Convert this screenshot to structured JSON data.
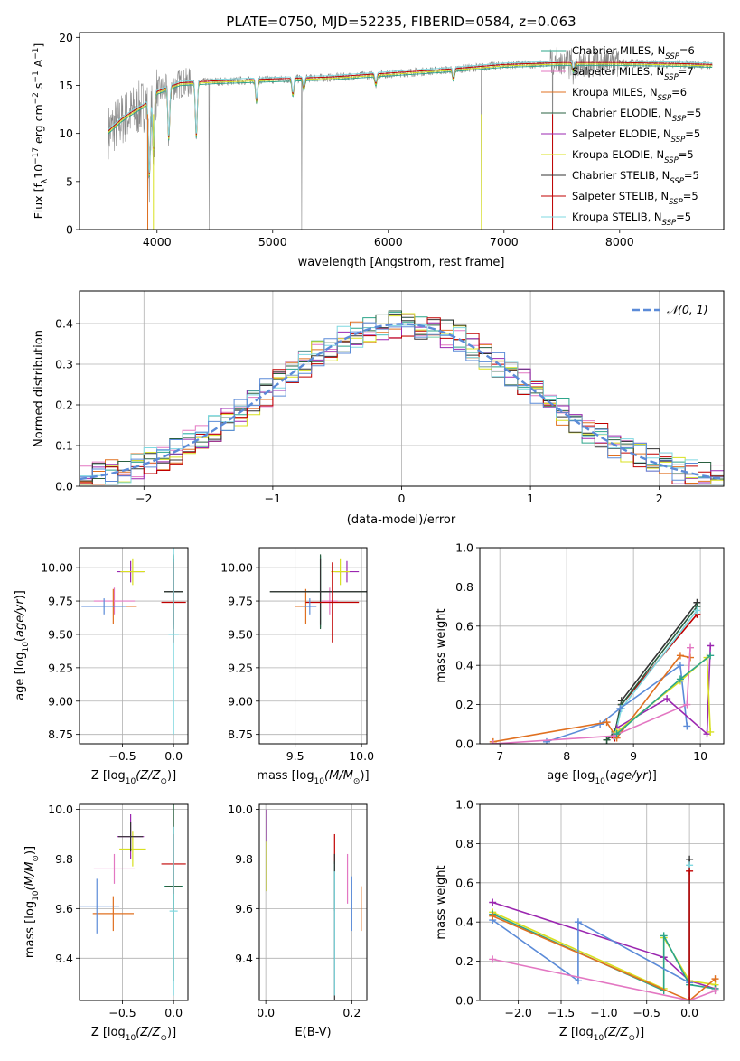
{
  "colors": {
    "chabrier_miles": "#2ca58a",
    "salpeter_miles": "#e377c2",
    "kroupa_miles": "#e07020",
    "chabrier_elodie": "#2a6040",
    "salpeter_elodie": "#9b27b0",
    "kroupa_elodie": "#d8e020",
    "chabrier_stelib": "#333333",
    "salpeter_stelib": "#c00000",
    "kroupa_stelib": "#7fd8e0",
    "spectrum": "#888888",
    "normal_curve": "#5b8bd8"
  },
  "chart_data": [
    {
      "id": "spectrum",
      "type": "line",
      "title": "PLATE=0750, MJD=52235, FIBERID=0584, z=0.063",
      "xlabel": "wavelength [Angstrom, rest frame]",
      "ylabel_parts": [
        "Flux [f",
        "λ",
        "10",
        "−17",
        " erg cm",
        "−2",
        " s",
        "−1",
        " A",
        "−1",
        "]"
      ],
      "xlim": [
        3330,
        8900
      ],
      "ylim": [
        0,
        20.5
      ],
      "xticks": [
        4000,
        5000,
        6000,
        7000,
        8000
      ],
      "yticks": [
        0,
        5,
        10,
        15,
        20
      ],
      "grid": false,
      "legend_position": "right",
      "legend": [
        {
          "label": "Chabrier MILES, N",
          "sub": "SSP",
          "tail": "=6",
          "color_key": "chabrier_miles"
        },
        {
          "label": "Salpeter MILES, N",
          "sub": "SSP",
          "tail": "=7",
          "color_key": "salpeter_miles"
        },
        {
          "label": "Kroupa MILES, N",
          "sub": "SSP",
          "tail": "=6",
          "color_key": "kroupa_miles"
        },
        {
          "label": "Chabrier ELODIE, N",
          "sub": "SSP",
          "tail": "=5",
          "color_key": "chabrier_elodie"
        },
        {
          "label": "Salpeter ELODIE, N",
          "sub": "SSP",
          "tail": "=5",
          "color_key": "salpeter_elodie"
        },
        {
          "label": "Kroupa ELODIE, N",
          "sub": "SSP",
          "tail": "=5",
          "color_key": "kroupa_elodie"
        },
        {
          "label": "Chabrier STELIB, N",
          "sub": "SSP",
          "tail": "=5",
          "color_key": "chabrier_stelib"
        },
        {
          "label": "Salpeter STELIB, N",
          "sub": "SSP",
          "tail": "=5",
          "color_key": "salpeter_stelib"
        },
        {
          "label": "Kroupa STELIB, N",
          "sub": "SSP",
          "tail": "=5",
          "color_key": "kroupa_stelib"
        }
      ],
      "continuum": [
        [
          3580,
          10.2
        ],
        [
          3700,
          11.5
        ],
        [
          3800,
          12.3
        ],
        [
          3900,
          13.0
        ],
        [
          4000,
          14.3
        ],
        [
          4200,
          15.2
        ],
        [
          4500,
          15.4
        ],
        [
          5000,
          15.6
        ],
        [
          5500,
          15.8
        ],
        [
          6000,
          16.2
        ],
        [
          6500,
          16.6
        ],
        [
          7000,
          17.1
        ],
        [
          7500,
          17.3
        ],
        [
          8000,
          17.3
        ],
        [
          8500,
          17.2
        ],
        [
          8800,
          17.1
        ]
      ],
      "absorption_lines": [
        [
          3934,
          0.5
        ],
        [
          3969,
          4.5
        ],
        [
          4102,
          6.0
        ],
        [
          4340,
          6.0
        ],
        [
          4861,
          12.0
        ],
        [
          5175,
          13.0
        ],
        [
          5270,
          14.0
        ],
        [
          5892,
          14.5
        ],
        [
          6563,
          15.0
        ],
        [
          7600,
          16.0
        ]
      ],
      "spikes": [
        [
          3920,
          0
        ],
        [
          4450,
          0
        ],
        [
          5250,
          0
        ],
        [
          6805,
          0
        ],
        [
          7420,
          0
        ]
      ]
    },
    {
      "id": "residuals",
      "type": "step",
      "xlabel": "(data-model)/error",
      "ylabel": "Normed distribution",
      "xlim": [
        -2.5,
        2.5
      ],
      "ylim": [
        0,
        0.48
      ],
      "xticks": [
        -2,
        -1,
        0,
        1,
        2
      ],
      "yticks": [
        0.0,
        0.1,
        0.2,
        0.3,
        0.4
      ],
      "grid": true,
      "legend_position": "top-right",
      "legend": [
        {
          "label": "𝒩(0, 1)",
          "color_key": "normal_curve",
          "style": "dashed"
        }
      ],
      "bin_width": 0.1,
      "normal": {
        "mean": 0,
        "sigma": 1
      }
    },
    {
      "id": "age_vs_Z",
      "type": "errorbar",
      "xlabel_parts": [
        "Z [log",
        "10",
        "(Z/Z",
        "⊙",
        ")]"
      ],
      "ylabel_parts": [
        "age  [log",
        "10",
        "(",
        "age/yr",
        ")]"
      ],
      "xlim": [
        -0.92,
        0.14
      ],
      "ylim": [
        8.68,
        10.15
      ],
      "xticks": [
        -0.5,
        0.0
      ],
      "yticks": [
        8.75,
        9.0,
        9.25,
        9.5,
        9.75,
        10.0
      ],
      "grid": true,
      "points": [
        {
          "color_key": "chabrier_miles",
          "x": 0.0,
          "xerr": 0.06,
          "y": 9.82,
          "yerr": 0.27
        },
        {
          "color_key": "salpeter_miles",
          "x": -0.58,
          "xerr": 0.2,
          "y": 9.75,
          "yerr": 0.1
        },
        {
          "color_key": "kroupa_miles",
          "x": -0.59,
          "xerr": 0.23,
          "y": 9.71,
          "yerr": 0.13
        },
        {
          "color_key": "chabrier_elodie",
          "x": 0.0,
          "xerr": 0.09,
          "y": 9.82,
          "yerr": 0.28
        },
        {
          "color_key": "salpeter_elodie",
          "x": -0.42,
          "xerr": 0.13,
          "y": 9.97,
          "yerr": 0.08
        },
        {
          "color_key": "kroupa_elodie",
          "x": -0.4,
          "xerr": 0.12,
          "y": 9.97,
          "yerr": 0.1
        },
        {
          "color_key": "chabrier_stelib",
          "x": 0.0,
          "xerr": 0.09,
          "y": 9.82,
          "yerr": 0.25
        },
        {
          "color_key": "salpeter_stelib",
          "x": 0.0,
          "xerr": 0.12,
          "y": 9.74,
          "yerr": 0.3
        },
        {
          "color_key": "normal_curve",
          "x": -0.68,
          "xerr": 0.22,
          "y": 9.71,
          "yerr": 0.06
        },
        {
          "color_key": "kroupa_stelib",
          "x": 0.0,
          "xerr": 0.05,
          "y": 9.5,
          "yerr": 0.75
        }
      ]
    },
    {
      "id": "age_vs_mass",
      "type": "errorbar",
      "xlabel_parts": [
        "mass [log",
        "10",
        "(M/M",
        "⊙",
        ")]"
      ],
      "xlim": [
        9.23,
        10.04
      ],
      "ylim": [
        8.68,
        10.15
      ],
      "xticks": [
        9.5,
        10.0
      ],
      "yticks": [
        8.75,
        9.0,
        9.25,
        9.5,
        9.75,
        10.0
      ],
      "grid": true,
      "points": [
        {
          "color_key": "chabrier_miles",
          "x": 9.69,
          "xerr": 0.1,
          "y": 9.82,
          "yerr": 0.27
        },
        {
          "color_key": "salpeter_miles",
          "x": 9.76,
          "xerr": 0.06,
          "y": 9.75,
          "yerr": 0.1
        },
        {
          "color_key": "kroupa_miles",
          "x": 9.58,
          "xerr": 0.08,
          "y": 9.71,
          "yerr": 0.13
        },
        {
          "color_key": "chabrier_elodie",
          "x": 9.69,
          "xerr": 0.38,
          "y": 9.82,
          "yerr": 0.28
        },
        {
          "color_key": "salpeter_elodie",
          "x": 9.89,
          "xerr": 0.09,
          "y": 9.97,
          "yerr": 0.08
        },
        {
          "color_key": "kroupa_elodie",
          "x": 9.84,
          "xerr": 0.07,
          "y": 9.97,
          "yerr": 0.1
        },
        {
          "color_key": "chabrier_stelib",
          "x": 9.69,
          "xerr": 0.38,
          "y": 9.82,
          "yerr": 0.25
        },
        {
          "color_key": "salpeter_stelib",
          "x": 9.78,
          "xerr": 0.2,
          "y": 9.74,
          "yerr": 0.3
        },
        {
          "color_key": "normal_curve",
          "x": 9.61,
          "xerr": 0.05,
          "y": 9.71,
          "yerr": 0.06
        }
      ]
    },
    {
      "id": "weight_vs_age",
      "type": "line",
      "xlabel_parts": [
        "age  [log",
        "10",
        "(",
        "age/yr",
        ")]"
      ],
      "ylabel": "mass weight",
      "xlim": [
        6.7,
        10.35
      ],
      "ylim": [
        0,
        1.0
      ],
      "xticks": [
        7,
        8,
        9,
        10
      ],
      "yticks": [
        0.0,
        0.2,
        0.4,
        0.6,
        0.8,
        1.0
      ],
      "grid": true,
      "series": [
        {
          "color_key": "chabrier_stelib",
          "x": [
            8.6,
            8.72,
            8.82,
            9.95
          ],
          "y": [
            0.02,
            0.05,
            0.22,
            0.72
          ]
        },
        {
          "color_key": "salpeter_stelib",
          "x": [
            8.72,
            8.82,
            9.95
          ],
          "y": [
            0.03,
            0.2,
            0.66
          ]
        },
        {
          "color_key": "chabrier_elodie",
          "x": [
            8.6,
            8.72,
            8.82,
            9.95
          ],
          "y": [
            0.02,
            0.06,
            0.2,
            0.7
          ]
        },
        {
          "color_key": "kroupa_stelib",
          "x": [
            8.72,
            8.82,
            9.95
          ],
          "y": [
            0.04,
            0.18,
            0.68
          ]
        },
        {
          "color_key": "normal_curve",
          "x": [
            7.7,
            8.5,
            8.8,
            9.7,
            9.8
          ],
          "y": [
            0.01,
            0.1,
            0.18,
            0.4,
            0.09
          ]
        },
        {
          "color_key": "kroupa_miles",
          "x": [
            6.9,
            8.6,
            8.75,
            9.7,
            9.85
          ],
          "y": [
            0.01,
            0.11,
            0.03,
            0.45,
            0.44
          ]
        },
        {
          "color_key": "salpeter_miles",
          "x": [
            6.9,
            8.7,
            9.8,
            9.85
          ],
          "y": [
            0.0,
            0.04,
            0.2,
            0.49
          ]
        },
        {
          "color_key": "salpeter_elodie",
          "x": [
            8.75,
            9.5,
            10.1,
            10.15
          ],
          "y": [
            0.08,
            0.23,
            0.05,
            0.5
          ]
        },
        {
          "color_key": "kroupa_elodie",
          "x": [
            8.75,
            9.7,
            10.1,
            10.15
          ],
          "y": [
            0.06,
            0.32,
            0.44,
            0.06
          ]
        },
        {
          "color_key": "chabrier_miles",
          "x": [
            8.75,
            9.7,
            10.15
          ],
          "y": [
            0.05,
            0.33,
            0.45
          ]
        }
      ]
    },
    {
      "id": "mass_vs_Z",
      "type": "errorbar",
      "xlabel_parts": [
        "Z [log",
        "10",
        "(Z/Z",
        "⊙",
        ")]"
      ],
      "ylabel_parts": [
        "mass [log",
        "10",
        "(M/M",
        "⊙",
        ")]"
      ],
      "xlim": [
        -0.92,
        0.14
      ],
      "ylim": [
        9.23,
        10.02
      ],
      "xticks": [
        -0.5,
        0.0
      ],
      "yticks": [
        9.4,
        9.6,
        9.8,
        10.0
      ],
      "grid": true,
      "points": [
        {
          "color_key": "chabrier_miles",
          "x": 0.0,
          "xerr": 0.09,
          "y": 9.69,
          "yerr": 0.1
        },
        {
          "color_key": "salpeter_miles",
          "x": -0.58,
          "xerr": 0.2,
          "y": 9.76,
          "yerr": 0.06
        },
        {
          "color_key": "kroupa_miles",
          "x": -0.59,
          "xerr": 0.2,
          "y": 9.58,
          "yerr": 0.07
        },
        {
          "color_key": "chabrier_elodie",
          "x": 0.0,
          "xerr": 0.08,
          "y": 9.69,
          "yerr": 0.38
        },
        {
          "color_key": "salpeter_elodie",
          "x": -0.42,
          "xerr": 0.13,
          "y": 9.89,
          "yerr": 0.09
        },
        {
          "color_key": "kroupa_elodie",
          "x": -0.4,
          "xerr": 0.13,
          "y": 9.84,
          "yerr": 0.07
        },
        {
          "color_key": "chabrier_stelib",
          "x": -0.42,
          "xerr": 0.12,
          "y": 9.89,
          "yerr": 0.06
        },
        {
          "color_key": "salpeter_stelib",
          "x": 0.0,
          "xerr": 0.12,
          "y": 9.78,
          "yerr": 0.12
        },
        {
          "color_key": "normal_curve",
          "x": -0.75,
          "xerr": 0.22,
          "y": 9.61,
          "yerr": 0.11
        },
        {
          "color_key": "kroupa_stelib",
          "x": 0.0,
          "xerr": 0.04,
          "y": 9.59,
          "yerr": 0.34
        }
      ]
    },
    {
      "id": "mass_vs_EBV",
      "type": "errorbar",
      "xlabel": "E(B-V)",
      "xlim": [
        -0.015,
        0.235
      ],
      "ylim": [
        9.23,
        10.02
      ],
      "xticks": [
        0.0,
        0.2
      ],
      "yticks": [
        9.4,
        9.6,
        9.8,
        10.0
      ],
      "grid": true,
      "points": [
        {
          "color_key": "salpeter_elodie",
          "x": 0.002,
          "y": 9.92,
          "yerr": 0.08
        },
        {
          "color_key": "kroupa_elodie",
          "x": 0.002,
          "y": 9.77,
          "yerr": 0.1
        },
        {
          "color_key": "salpeter_stelib",
          "x": 0.16,
          "y": 9.84,
          "yerr": 0.06
        },
        {
          "color_key": "chabrier_miles",
          "x": 0.16,
          "y": 9.69,
          "yerr": 0.1
        },
        {
          "color_key": "chabrier_stelib",
          "x": 0.16,
          "y": 9.52,
          "yerr": 0.3
        },
        {
          "color_key": "kroupa_stelib",
          "x": 0.16,
          "y": 9.5,
          "yerr": 0.25
        },
        {
          "color_key": "salpeter_miles",
          "x": 0.19,
          "y": 9.72,
          "yerr": 0.1
        },
        {
          "color_key": "normal_curve",
          "x": 0.2,
          "y": 9.62,
          "yerr": 0.11
        },
        {
          "color_key": "kroupa_miles",
          "x": 0.222,
          "y": 9.6,
          "yerr": 0.09
        }
      ]
    },
    {
      "id": "weight_vs_Z",
      "type": "line",
      "xlabel_parts": [
        "Z [log",
        "10",
        "(Z/Z",
        "⊙",
        ")]"
      ],
      "ylabel": "mass weight",
      "xlim": [
        -2.45,
        0.4
      ],
      "ylim": [
        0,
        1.0
      ],
      "xticks": [
        -2.0,
        -1.5,
        -1.0,
        -0.5,
        0.0
      ],
      "xtick_labels": [
        "−2.0",
        "−1.5",
        "−1.0",
        "−0.5",
        "0.0"
      ],
      "yticks": [
        0.0,
        0.2,
        0.4,
        0.6,
        0.8,
        1.0
      ],
      "grid": true,
      "series": [
        {
          "color_key": "salpeter_elodie",
          "x": [
            -2.3,
            -0.3,
            0.0,
            0.3
          ],
          "y": [
            0.5,
            0.22,
            0.1,
            0.06
          ]
        },
        {
          "color_key": "kroupa_elodie",
          "x": [
            -2.3,
            -0.3,
            -0.3,
            0.0,
            0.3
          ],
          "y": [
            0.45,
            0.06,
            0.32,
            0.1,
            0.08
          ]
        },
        {
          "color_key": "chabrier_miles",
          "x": [
            -2.3,
            -0.3,
            -0.3,
            0.0,
            0.3
          ],
          "y": [
            0.44,
            0.05,
            0.33,
            0.08,
            0.06
          ]
        },
        {
          "color_key": "normal_curve",
          "x": [
            -2.3,
            -1.3,
            -1.3,
            0.0
          ],
          "y": [
            0.41,
            0.1,
            0.4,
            0.09
          ]
        },
        {
          "color_key": "kroupa_miles",
          "x": [
            -2.3,
            0.0,
            0.3
          ],
          "y": [
            0.43,
            0.0,
            0.11
          ]
        },
        {
          "color_key": "salpeter_miles",
          "x": [
            -2.3,
            0.0,
            0.3
          ],
          "y": [
            0.21,
            0.0,
            0.05
          ]
        },
        {
          "color_key": "chabrier_stelib",
          "x": [
            0.0,
            0.0
          ],
          "y": [
            0.0,
            0.72
          ]
        },
        {
          "color_key": "kroupa_stelib",
          "x": [
            0.0,
            0.0
          ],
          "y": [
            0.0,
            0.69
          ]
        },
        {
          "color_key": "salpeter_stelib",
          "x": [
            0.0,
            0.0
          ],
          "y": [
            0.0,
            0.66
          ]
        }
      ]
    }
  ]
}
